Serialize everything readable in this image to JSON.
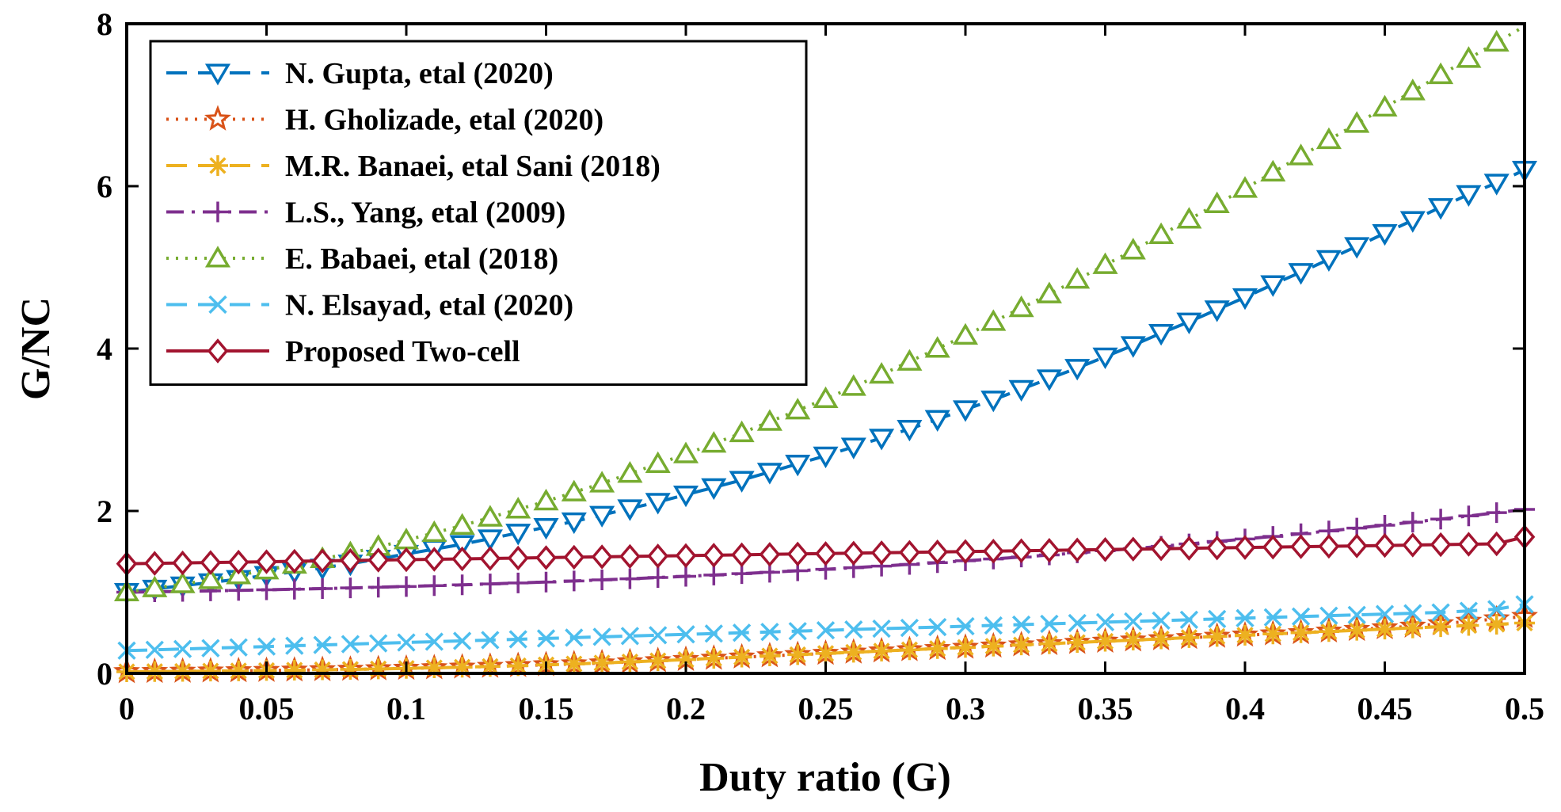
{
  "chart_data": {
    "type": "line",
    "title": "",
    "xlabel": "Duty ratio (G)",
    "ylabel": "G/NC",
    "xlim": [
      0,
      0.5
    ],
    "ylim": [
      0,
      8
    ],
    "xticks": [
      "0",
      "0.05",
      "0.1",
      "0.15",
      "0.2",
      "0.25",
      "0.3",
      "0.35",
      "0.4",
      "0.45",
      "0.5"
    ],
    "yticks": [
      "0",
      "2",
      "4",
      "6",
      "8"
    ],
    "grid": false,
    "legend_position": "top-left",
    "x": [
      0,
      0.01,
      0.02,
      0.03,
      0.04,
      0.05,
      0.06,
      0.07,
      0.08,
      0.09,
      0.1,
      0.11,
      0.12,
      0.13,
      0.14,
      0.15,
      0.16,
      0.17,
      0.18,
      0.19,
      0.2,
      0.21,
      0.22,
      0.23,
      0.24,
      0.25,
      0.26,
      0.27,
      0.28,
      0.29,
      0.3,
      0.31,
      0.32,
      0.33,
      0.34,
      0.35,
      0.36,
      0.37,
      0.38,
      0.39,
      0.4,
      0.41,
      0.42,
      0.43,
      0.44,
      0.45,
      0.46,
      0.47,
      0.48,
      0.49,
      0.5
    ],
    "series": [
      {
        "name": "N. Gupta, etal (2020)",
        "color": "#0072BD",
        "dash": "long-dash",
        "marker": "triangle-down",
        "values": [
          1.0,
          1.04,
          1.08,
          1.12,
          1.16,
          1.21,
          1.25,
          1.3,
          1.35,
          1.41,
          1.47,
          1.53,
          1.59,
          1.66,
          1.73,
          1.8,
          1.87,
          1.95,
          2.03,
          2.11,
          2.2,
          2.29,
          2.38,
          2.48,
          2.58,
          2.68,
          2.79,
          2.9,
          3.01,
          3.13,
          3.25,
          3.37,
          3.5,
          3.63,
          3.76,
          3.9,
          4.04,
          4.19,
          4.33,
          4.48,
          4.63,
          4.79,
          4.94,
          5.1,
          5.26,
          5.42,
          5.58,
          5.74,
          5.9,
          6.04,
          6.2
        ]
      },
      {
        "name": "H. Gholizade, etal (2020)",
        "color": "#D95319",
        "dash": "dotted",
        "marker": "star",
        "values": [
          0.02,
          0.022,
          0.025,
          0.028,
          0.031,
          0.035,
          0.039,
          0.044,
          0.049,
          0.055,
          0.061,
          0.068,
          0.076,
          0.085,
          0.094,
          0.105,
          0.116,
          0.128,
          0.141,
          0.155,
          0.17,
          0.185,
          0.2,
          0.215,
          0.23,
          0.245,
          0.26,
          0.275,
          0.29,
          0.305,
          0.32,
          0.335,
          0.35,
          0.365,
          0.38,
          0.395,
          0.41,
          0.425,
          0.44,
          0.455,
          0.47,
          0.485,
          0.5,
          0.52,
          0.54,
          0.56,
          0.58,
          0.61,
          0.64,
          0.67,
          0.7
        ]
      },
      {
        "name": "M.R. Banaei, etal Sani (2018)",
        "color": "#EDB120",
        "dash": "long-dash",
        "marker": "asterisk",
        "values": [
          0.02,
          0.022,
          0.025,
          0.028,
          0.031,
          0.035,
          0.039,
          0.044,
          0.049,
          0.055,
          0.061,
          0.068,
          0.076,
          0.085,
          0.094,
          0.105,
          0.116,
          0.128,
          0.141,
          0.155,
          0.17,
          0.185,
          0.2,
          0.215,
          0.23,
          0.245,
          0.26,
          0.275,
          0.29,
          0.305,
          0.32,
          0.335,
          0.35,
          0.365,
          0.38,
          0.395,
          0.41,
          0.425,
          0.44,
          0.455,
          0.47,
          0.485,
          0.5,
          0.515,
          0.53,
          0.545,
          0.56,
          0.575,
          0.59,
          0.605,
          0.62
        ]
      },
      {
        "name": "L.S., Yang, etal (2009)",
        "color": "#7E2F8E",
        "dash": "dash-dot",
        "marker": "plus",
        "values": [
          1.0,
          1.005,
          1.01,
          1.016,
          1.022,
          1.029,
          1.036,
          1.044,
          1.052,
          1.061,
          1.07,
          1.08,
          1.09,
          1.101,
          1.113,
          1.125,
          1.138,
          1.151,
          1.165,
          1.18,
          1.195,
          1.211,
          1.228,
          1.245,
          1.263,
          1.282,
          1.301,
          1.321,
          1.342,
          1.364,
          1.386,
          1.409,
          1.433,
          1.458,
          1.484,
          1.51,
          1.537,
          1.565,
          1.594,
          1.624,
          1.655,
          1.687,
          1.72,
          1.754,
          1.789,
          1.825,
          1.862,
          1.9,
          1.939,
          1.979,
          2.02
        ]
      },
      {
        "name": "E. Babaei, etal (2018)",
        "color": "#77AC30",
        "dash": "dotted",
        "marker": "triangle-up",
        "values": [
          1.0,
          1.05,
          1.1,
          1.15,
          1.21,
          1.27,
          1.34,
          1.41,
          1.48,
          1.56,
          1.64,
          1.73,
          1.82,
          1.92,
          2.02,
          2.12,
          2.23,
          2.34,
          2.46,
          2.58,
          2.7,
          2.83,
          2.96,
          3.1,
          3.24,
          3.38,
          3.53,
          3.68,
          3.84,
          4.0,
          4.16,
          4.33,
          4.5,
          4.67,
          4.85,
          5.03,
          5.21,
          5.4,
          5.59,
          5.78,
          5.97,
          6.17,
          6.37,
          6.57,
          6.77,
          6.97,
          7.17,
          7.37,
          7.57,
          7.77,
          7.97
        ]
      },
      {
        "name": "N. Elsayad, etal (2020)",
        "color": "#4DBEEE",
        "dash": "long-dash",
        "marker": "cross",
        "values": [
          0.28,
          0.29,
          0.3,
          0.31,
          0.32,
          0.33,
          0.34,
          0.35,
          0.36,
          0.37,
          0.38,
          0.39,
          0.4,
          0.41,
          0.42,
          0.43,
          0.44,
          0.45,
          0.46,
          0.47,
          0.48,
          0.49,
          0.5,
          0.51,
          0.52,
          0.53,
          0.54,
          0.55,
          0.56,
          0.57,
          0.58,
          0.59,
          0.6,
          0.61,
          0.62,
          0.63,
          0.64,
          0.65,
          0.66,
          0.67,
          0.68,
          0.69,
          0.7,
          0.71,
          0.72,
          0.73,
          0.74,
          0.75,
          0.77,
          0.79,
          0.85
        ]
      },
      {
        "name": "Proposed Two-cell",
        "color": "#A2142F",
        "dash": "solid",
        "marker": "diamond",
        "values": [
          1.35,
          1.355,
          1.36,
          1.365,
          1.37,
          1.375,
          1.38,
          1.385,
          1.39,
          1.395,
          1.4,
          1.405,
          1.41,
          1.415,
          1.42,
          1.425,
          1.43,
          1.435,
          1.44,
          1.445,
          1.45,
          1.455,
          1.46,
          1.465,
          1.47,
          1.475,
          1.48,
          1.485,
          1.49,
          1.495,
          1.5,
          1.505,
          1.51,
          1.515,
          1.52,
          1.525,
          1.53,
          1.535,
          1.54,
          1.545,
          1.55,
          1.555,
          1.56,
          1.565,
          1.57,
          1.575,
          1.58,
          1.585,
          1.59,
          1.595,
          1.68
        ]
      }
    ]
  }
}
